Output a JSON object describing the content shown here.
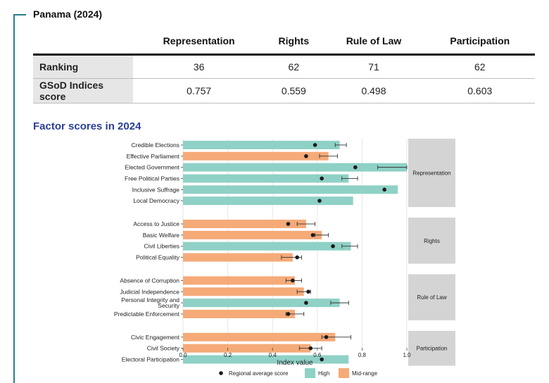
{
  "header": {
    "country_title": "Panama (2024)"
  },
  "summary_table": {
    "columns": [
      "",
      "Representation",
      "Rights",
      "Rule of Law",
      "Participation"
    ],
    "rows": [
      {
        "label": "Ranking",
        "values": [
          "36",
          "62",
          "71",
          "62"
        ]
      },
      {
        "label": "GSoD Indices score",
        "values": [
          "0.757",
          "0.559",
          "0.498",
          "0.603"
        ]
      }
    ]
  },
  "chart_data": {
    "type": "bar",
    "orientation": "horizontal",
    "title": "Factor scores in 2024",
    "xlabel": "Index value",
    "xlim": [
      0,
      1
    ],
    "xticks": [
      "0.0",
      "0.2",
      "0.4",
      "0.6",
      "0.8",
      "1.0"
    ],
    "grid": true,
    "legend": {
      "position": "bottom",
      "entries": [
        "Regional average score",
        "High",
        "Mid-range"
      ]
    },
    "colors": {
      "High": "#8fd1c6",
      "Mid-range": "#f5aa78",
      "dot": "#1a1a1a",
      "panel": "#d4d4d4"
    },
    "groups": [
      {
        "name": "Representation",
        "factors": [
          {
            "label": "Credible Elections",
            "value": 0.7,
            "ci": [
              0.68,
              0.73
            ],
            "avg": 0.59,
            "level": "High"
          },
          {
            "label": "Effective Parliament",
            "value": 0.65,
            "ci": [
              0.61,
              0.69
            ],
            "avg": 0.55,
            "level": "Mid-range"
          },
          {
            "label": "Elected Government",
            "value": 1.0,
            "ci": [
              0.87,
              1.0
            ],
            "avg": 0.77,
            "level": "High"
          },
          {
            "label": "Free Political Parties",
            "value": 0.74,
            "ci": [
              0.71,
              0.78
            ],
            "avg": 0.62,
            "level": "High"
          },
          {
            "label": "Inclusive Suffrage",
            "value": 0.96,
            "ci": null,
            "avg": 0.9,
            "level": "High"
          },
          {
            "label": "Local Democracy",
            "value": 0.76,
            "ci": null,
            "avg": 0.61,
            "level": "High"
          }
        ]
      },
      {
        "name": "Rights",
        "factors": [
          {
            "label": "Access to Justice",
            "value": 0.55,
            "ci": [
              0.51,
              0.59
            ],
            "avg": 0.47,
            "level": "Mid-range"
          },
          {
            "label": "Basic Welfare",
            "value": 0.62,
            "ci": [
              0.59,
              0.65
            ],
            "avg": 0.58,
            "level": "Mid-range"
          },
          {
            "label": "Civil Liberties",
            "value": 0.75,
            "ci": [
              0.71,
              0.78
            ],
            "avg": 0.67,
            "level": "High"
          },
          {
            "label": "Political Equality",
            "value": 0.49,
            "ci": [
              0.44,
              0.53
            ],
            "avg": 0.51,
            "level": "Mid-range"
          }
        ]
      },
      {
        "name": "Rule of Law",
        "factors": [
          {
            "label": "Absence of Corruption",
            "value": 0.5,
            "ci": [
              0.46,
              0.53
            ],
            "avg": 0.49,
            "level": "Mid-range"
          },
          {
            "label": "Judicial Independence",
            "value": 0.54,
            "ci": [
              0.51,
              0.57
            ],
            "avg": 0.56,
            "level": "Mid-range"
          },
          {
            "label": "Personal Integrity and Security",
            "value": 0.7,
            "ci": [
              0.66,
              0.74
            ],
            "avg": 0.55,
            "level": "High"
          },
          {
            "label": "Predictable Enforcement",
            "value": 0.5,
            "ci": [
              0.46,
              0.54
            ],
            "avg": 0.47,
            "level": "Mid-range"
          }
        ]
      },
      {
        "name": "Participation",
        "factors": [
          {
            "label": "Civic Engagement",
            "value": 0.68,
            "ci": [
              0.62,
              0.75
            ],
            "avg": 0.64,
            "level": "Mid-range"
          },
          {
            "label": "Civil Society",
            "value": 0.57,
            "ci": [
              0.52,
              0.62
            ],
            "avg": 0.57,
            "level": "Mid-range"
          },
          {
            "label": "Electoral Participation",
            "value": 0.74,
            "ci": null,
            "avg": 0.62,
            "level": "High"
          }
        ]
      }
    ]
  }
}
